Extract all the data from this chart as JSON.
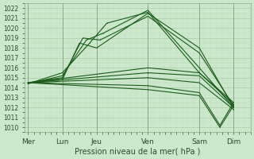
{
  "background_color": "#cce8cc",
  "grid_major_color": "#aaccaa",
  "grid_minor_color": "#bbddbb",
  "line_color": "#1a5c1a",
  "ylim": [
    1009.5,
    1022.5
  ],
  "yticks": [
    1010,
    1011,
    1012,
    1013,
    1014,
    1015,
    1016,
    1017,
    1018,
    1019,
    1020,
    1021,
    1022
  ],
  "xlabel": "Pression niveau de la mer( hPa )",
  "day_labels": [
    "Mer",
    "Lun",
    "Jeu",
    "Ven",
    "Sam",
    "Dim"
  ],
  "day_x": [
    0.0,
    1.0,
    2.0,
    3.5,
    5.0,
    6.0
  ],
  "xlim": [
    -0.1,
    6.5
  ],
  "series": [
    {
      "x": [
        0.0,
        1.0,
        1.5,
        2.0,
        3.5,
        5.0,
        6.0
      ],
      "y": [
        1014.5,
        1014.8,
        1018.5,
        1018.0,
        1021.5,
        1018.0,
        1012.0
      ]
    },
    {
      "x": [
        0.0,
        1.0,
        1.6,
        2.1,
        3.5,
        5.0,
        6.0
      ],
      "y": [
        1014.5,
        1015.0,
        1019.0,
        1018.8,
        1021.2,
        1017.5,
        1012.2
      ]
    },
    {
      "x": [
        0.0,
        1.0,
        1.7,
        2.2,
        3.5,
        5.0,
        6.0
      ],
      "y": [
        1014.4,
        1015.2,
        1018.8,
        1019.5,
        1021.8,
        1016.0,
        1012.0
      ]
    },
    {
      "x": [
        0.0,
        1.0,
        1.8,
        2.3,
        3.5,
        5.0,
        6.0
      ],
      "y": [
        1014.4,
        1015.5,
        1018.5,
        1020.5,
        1021.6,
        1015.5,
        1012.3
      ]
    },
    {
      "x": [
        0.0,
        3.5,
        5.0,
        6.0
      ],
      "y": [
        1014.5,
        1016.0,
        1015.5,
        1012.5
      ]
    },
    {
      "x": [
        0.0,
        3.5,
        5.0,
        6.0
      ],
      "y": [
        1014.5,
        1015.5,
        1015.2,
        1012.0
      ]
    },
    {
      "x": [
        0.0,
        3.5,
        5.0,
        6.0
      ],
      "y": [
        1014.5,
        1015.0,
        1014.5,
        1011.8
      ]
    },
    {
      "x": [
        0.0,
        3.5,
        5.0,
        5.6,
        6.0
      ],
      "y": [
        1014.5,
        1014.2,
        1013.5,
        1010.2,
        1012.5
      ]
    },
    {
      "x": [
        0.0,
        3.5,
        5.0,
        5.6,
        6.0
      ],
      "y": [
        1014.5,
        1013.8,
        1013.2,
        1010.0,
        1012.2
      ]
    }
  ]
}
